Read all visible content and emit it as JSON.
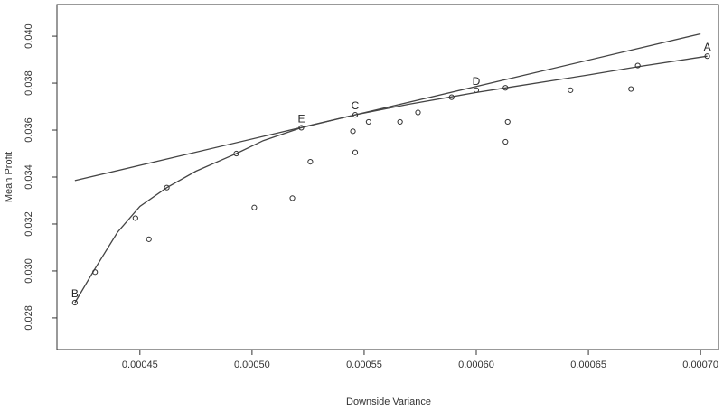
{
  "chart_data": {
    "type": "scatter",
    "xlabel": "Downside Variance",
    "ylabel": "Mean Profit",
    "xlim": [
      0.000413,
      0.000708
    ],
    "ylim": [
      0.02665,
      0.04135
    ],
    "x_ticks": [
      0.00045,
      0.0005,
      0.00055,
      0.0006,
      0.00065,
      0.0007
    ],
    "x_tick_labels": [
      "0.00045",
      "0.00050",
      "0.00055",
      "0.00060",
      "0.00065",
      "0.00070"
    ],
    "y_ticks": [
      0.028,
      0.03,
      0.032,
      0.034,
      0.036,
      0.038,
      0.04
    ],
    "y_tick_labels": [
      "0.028",
      "0.030",
      "0.032",
      "0.034",
      "0.036",
      "0.038",
      "0.040"
    ],
    "grid": false,
    "points": [
      {
        "x": 0.000421,
        "y": 0.02865
      },
      {
        "x": 0.00043,
        "y": 0.02995
      },
      {
        "x": 0.000448,
        "y": 0.03225
      },
      {
        "x": 0.000454,
        "y": 0.03135
      },
      {
        "x": 0.000462,
        "y": 0.03355
      },
      {
        "x": 0.000493,
        "y": 0.035
      },
      {
        "x": 0.000501,
        "y": 0.0327
      },
      {
        "x": 0.000518,
        "y": 0.0331
      },
      {
        "x": 0.000522,
        "y": 0.0361
      },
      {
        "x": 0.000526,
        "y": 0.03465
      },
      {
        "x": 0.000545,
        "y": 0.03595
      },
      {
        "x": 0.000546,
        "y": 0.03665
      },
      {
        "x": 0.000546,
        "y": 0.03505
      },
      {
        "x": 0.000552,
        "y": 0.03635
      },
      {
        "x": 0.000566,
        "y": 0.03635
      },
      {
        "x": 0.000574,
        "y": 0.03675
      },
      {
        "x": 0.000589,
        "y": 0.0374
      },
      {
        "x": 0.0006,
        "y": 0.0377
      },
      {
        "x": 0.000613,
        "y": 0.0378
      },
      {
        "x": 0.000613,
        "y": 0.0355
      },
      {
        "x": 0.000614,
        "y": 0.03635
      },
      {
        "x": 0.000642,
        "y": 0.0377
      },
      {
        "x": 0.000669,
        "y": 0.03775
      },
      {
        "x": 0.000672,
        "y": 0.03875
      },
      {
        "x": 0.000703,
        "y": 0.03915
      }
    ],
    "frontier_curve": [
      {
        "x": 0.000421,
        "y": 0.02865
      },
      {
        "x": 0.00043,
        "y": 0.0301
      },
      {
        "x": 0.00044,
        "y": 0.03165
      },
      {
        "x": 0.00045,
        "y": 0.03275
      },
      {
        "x": 0.000462,
        "y": 0.03355
      },
      {
        "x": 0.000475,
        "y": 0.03425
      },
      {
        "x": 0.000493,
        "y": 0.035
      },
      {
        "x": 0.000505,
        "y": 0.03555
      },
      {
        "x": 0.000522,
        "y": 0.0361
      },
      {
        "x": 0.000546,
        "y": 0.03665
      },
      {
        "x": 0.00057,
        "y": 0.0371
      },
      {
        "x": 0.0006,
        "y": 0.0376
      },
      {
        "x": 0.000613,
        "y": 0.0378
      },
      {
        "x": 0.00065,
        "y": 0.03835
      },
      {
        "x": 0.000672,
        "y": 0.0387
      },
      {
        "x": 0.000703,
        "y": 0.03915
      }
    ],
    "straight_line": [
      {
        "x": 0.000421,
        "y": 0.03385
      },
      {
        "x": 0.0007,
        "y": 0.0401
      }
    ],
    "point_labels": [
      {
        "text": "A",
        "x": 0.000703,
        "y": 0.03915
      },
      {
        "text": "B",
        "x": 0.000421,
        "y": 0.02865
      },
      {
        "text": "C",
        "x": 0.000546,
        "y": 0.03665
      },
      {
        "text": "D",
        "x": 0.0006,
        "y": 0.0377
      },
      {
        "text": "E",
        "x": 0.000522,
        "y": 0.0361
      }
    ]
  }
}
